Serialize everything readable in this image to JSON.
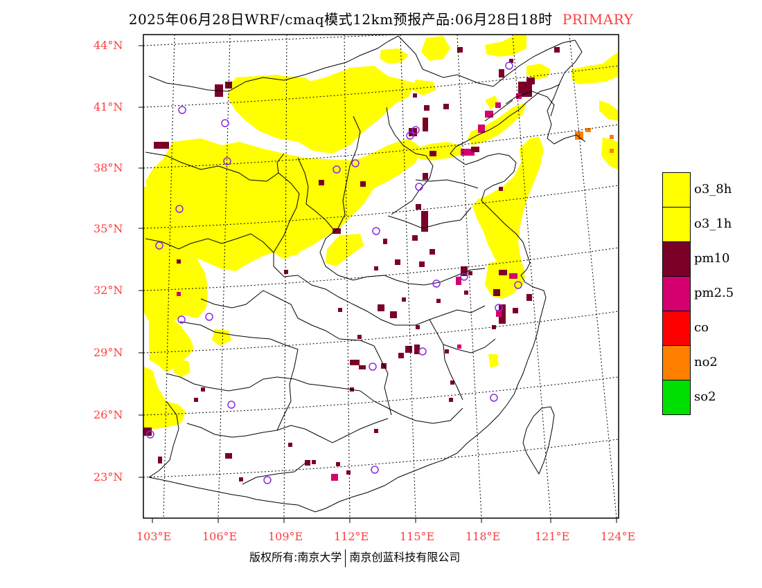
{
  "header": {
    "title": "2025年06月28日WRF/cmaq模式12km预报产品:06月28日18时",
    "tag": "PRIMARY"
  },
  "axes": {
    "lat_labels": [
      "44°N",
      "41°N",
      "38°N",
      "35°N",
      "32°N",
      "29°N",
      "26°N",
      "23°N"
    ],
    "lon_labels": [
      "103°E",
      "106°E",
      "109°E",
      "112°E",
      "115°E",
      "118°E",
      "121°E",
      "124°E"
    ]
  },
  "legend": [
    {
      "label": "o3_8h",
      "color": "#ffff00"
    },
    {
      "label": "o3_1h",
      "color": "#ffff00"
    },
    {
      "label": "pm10",
      "color": "#7a0028"
    },
    {
      "label": "pm2.5",
      "color": "#d4006f"
    },
    {
      "label": "co",
      "color": "#ff0000"
    },
    {
      "label": "no2",
      "color": "#ff7f00"
    },
    {
      "label": "so2",
      "color": "#00e000"
    }
  ],
  "footer": {
    "left": "版权所有:南京大学",
    "right": "南京创蓝科技有限公司"
  },
  "colors": {
    "o3": "#ffff00",
    "pm10": "#7a0028",
    "pm25": "#d4006f",
    "no2": "#ff7f00",
    "station_marker": "#8a2be2",
    "axis_label": "#ff3c3c"
  },
  "map_layers": [
    "province-boundaries",
    "coastline",
    "taiwan-island",
    "graticule",
    "o3-primary-areas",
    "pm10-primary-cells",
    "pm25-primary-cells",
    "no2-primary-cells",
    "city-station-markers"
  ]
}
